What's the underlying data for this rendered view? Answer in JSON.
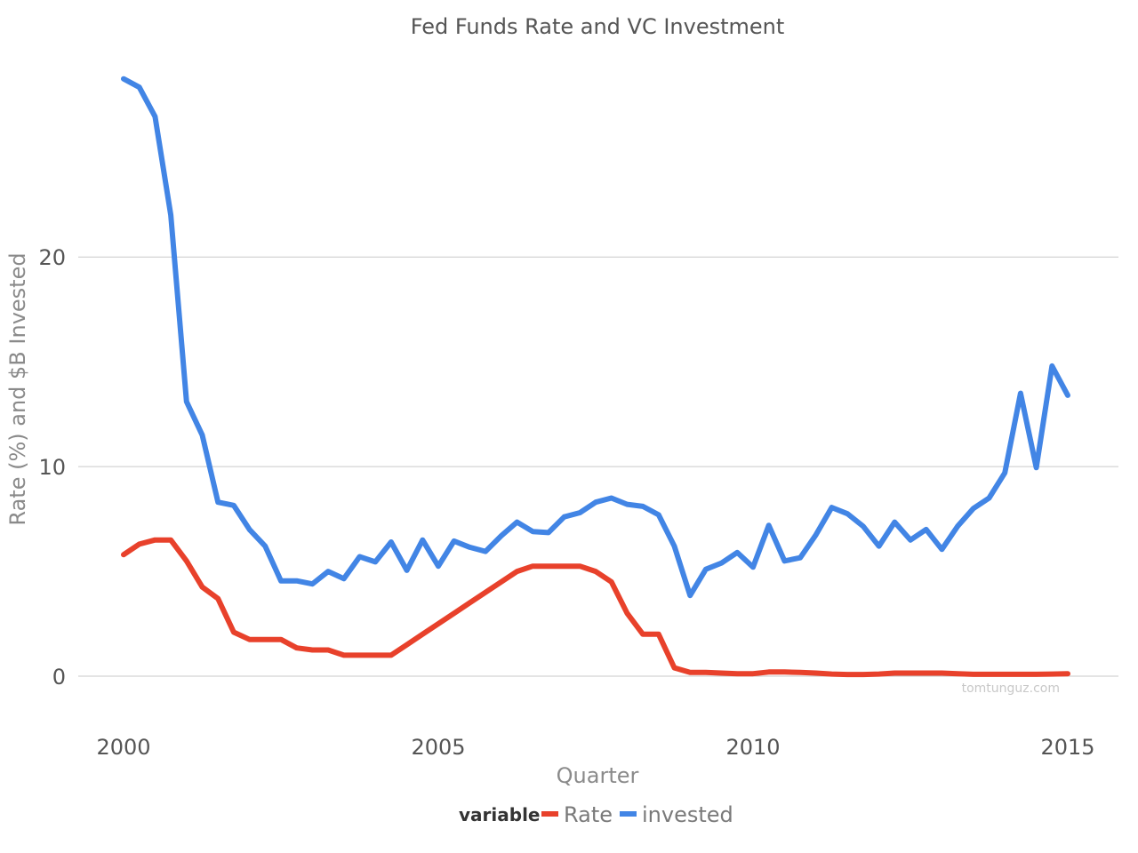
{
  "chart_data": {
    "type": "line",
    "title": "Fed Funds Rate and VC Investment",
    "xlabel": "Quarter",
    "ylabel": "Rate (%) and $B Invested",
    "xlim": [
      2000,
      2015
    ],
    "ylim": [
      0,
      28.7
    ],
    "x_ticks": [
      2000,
      2005,
      2010,
      2015
    ],
    "y_ticks": [
      0,
      10,
      20
    ],
    "grid": true,
    "legend": {
      "title": "variable",
      "placement": "bottom",
      "entries": [
        "Rate",
        "invested"
      ]
    },
    "watermark": "tomtunguz.com",
    "x": [
      2000.0,
      2000.25,
      2000.5,
      2000.75,
      2001.0,
      2001.25,
      2001.5,
      2001.75,
      2002.0,
      2002.25,
      2002.5,
      2002.75,
      2003.0,
      2003.25,
      2003.5,
      2003.75,
      2004.0,
      2004.25,
      2004.5,
      2004.75,
      2005.0,
      2005.25,
      2005.5,
      2005.75,
      2006.0,
      2006.25,
      2006.5,
      2006.75,
      2007.0,
      2007.25,
      2007.5,
      2007.75,
      2008.0,
      2008.25,
      2008.5,
      2008.75,
      2009.0,
      2009.25,
      2009.5,
      2009.75,
      2010.0,
      2010.25,
      2010.5,
      2010.75,
      2011.0,
      2011.25,
      2011.5,
      2011.75,
      2012.0,
      2012.25,
      2012.5,
      2012.75,
      2013.0,
      2013.25,
      2013.5,
      2013.75,
      2014.0,
      2014.25,
      2014.5,
      2014.75,
      2015.0
    ],
    "series": [
      {
        "name": "Rate",
        "color": "#e8412b",
        "values": [
          5.8,
          6.3,
          6.5,
          6.5,
          5.5,
          4.25,
          3.7,
          2.1,
          1.75,
          1.75,
          1.75,
          1.35,
          1.25,
          1.25,
          1.0,
          1.0,
          1.0,
          1.0,
          1.5,
          2.0,
          2.5,
          3.0,
          3.5,
          4.0,
          4.5,
          5.0,
          5.25,
          5.25,
          5.25,
          5.25,
          5.0,
          4.5,
          3.0,
          2.0,
          2.0,
          0.4,
          0.18,
          0.18,
          0.15,
          0.12,
          0.12,
          0.2,
          0.2,
          0.18,
          0.15,
          0.1,
          0.08,
          0.08,
          0.1,
          0.15,
          0.15,
          0.15,
          0.15,
          0.12,
          0.09,
          0.09,
          0.09,
          0.09,
          0.09,
          0.1,
          0.12
        ]
      },
      {
        "name": "invested",
        "color": "#4285e5",
        "values": [
          28.5,
          28.1,
          26.7,
          22.0,
          13.1,
          11.5,
          8.3,
          8.15,
          7.0,
          6.2,
          4.55,
          4.55,
          4.4,
          5.0,
          4.65,
          5.7,
          5.45,
          6.4,
          5.05,
          6.5,
          5.25,
          6.45,
          6.15,
          5.95,
          6.7,
          7.35,
          6.9,
          6.85,
          7.6,
          7.8,
          8.3,
          8.5,
          8.2,
          8.1,
          7.7,
          6.2,
          3.85,
          5.1,
          5.4,
          5.9,
          5.2,
          7.2,
          5.5,
          5.65,
          6.75,
          8.05,
          7.75,
          7.15,
          6.2,
          7.35,
          6.5,
          7.0,
          6.05,
          7.15,
          8.0,
          8.5,
          9.7,
          13.5,
          9.95,
          14.8,
          13.4
        ]
      }
    ]
  }
}
